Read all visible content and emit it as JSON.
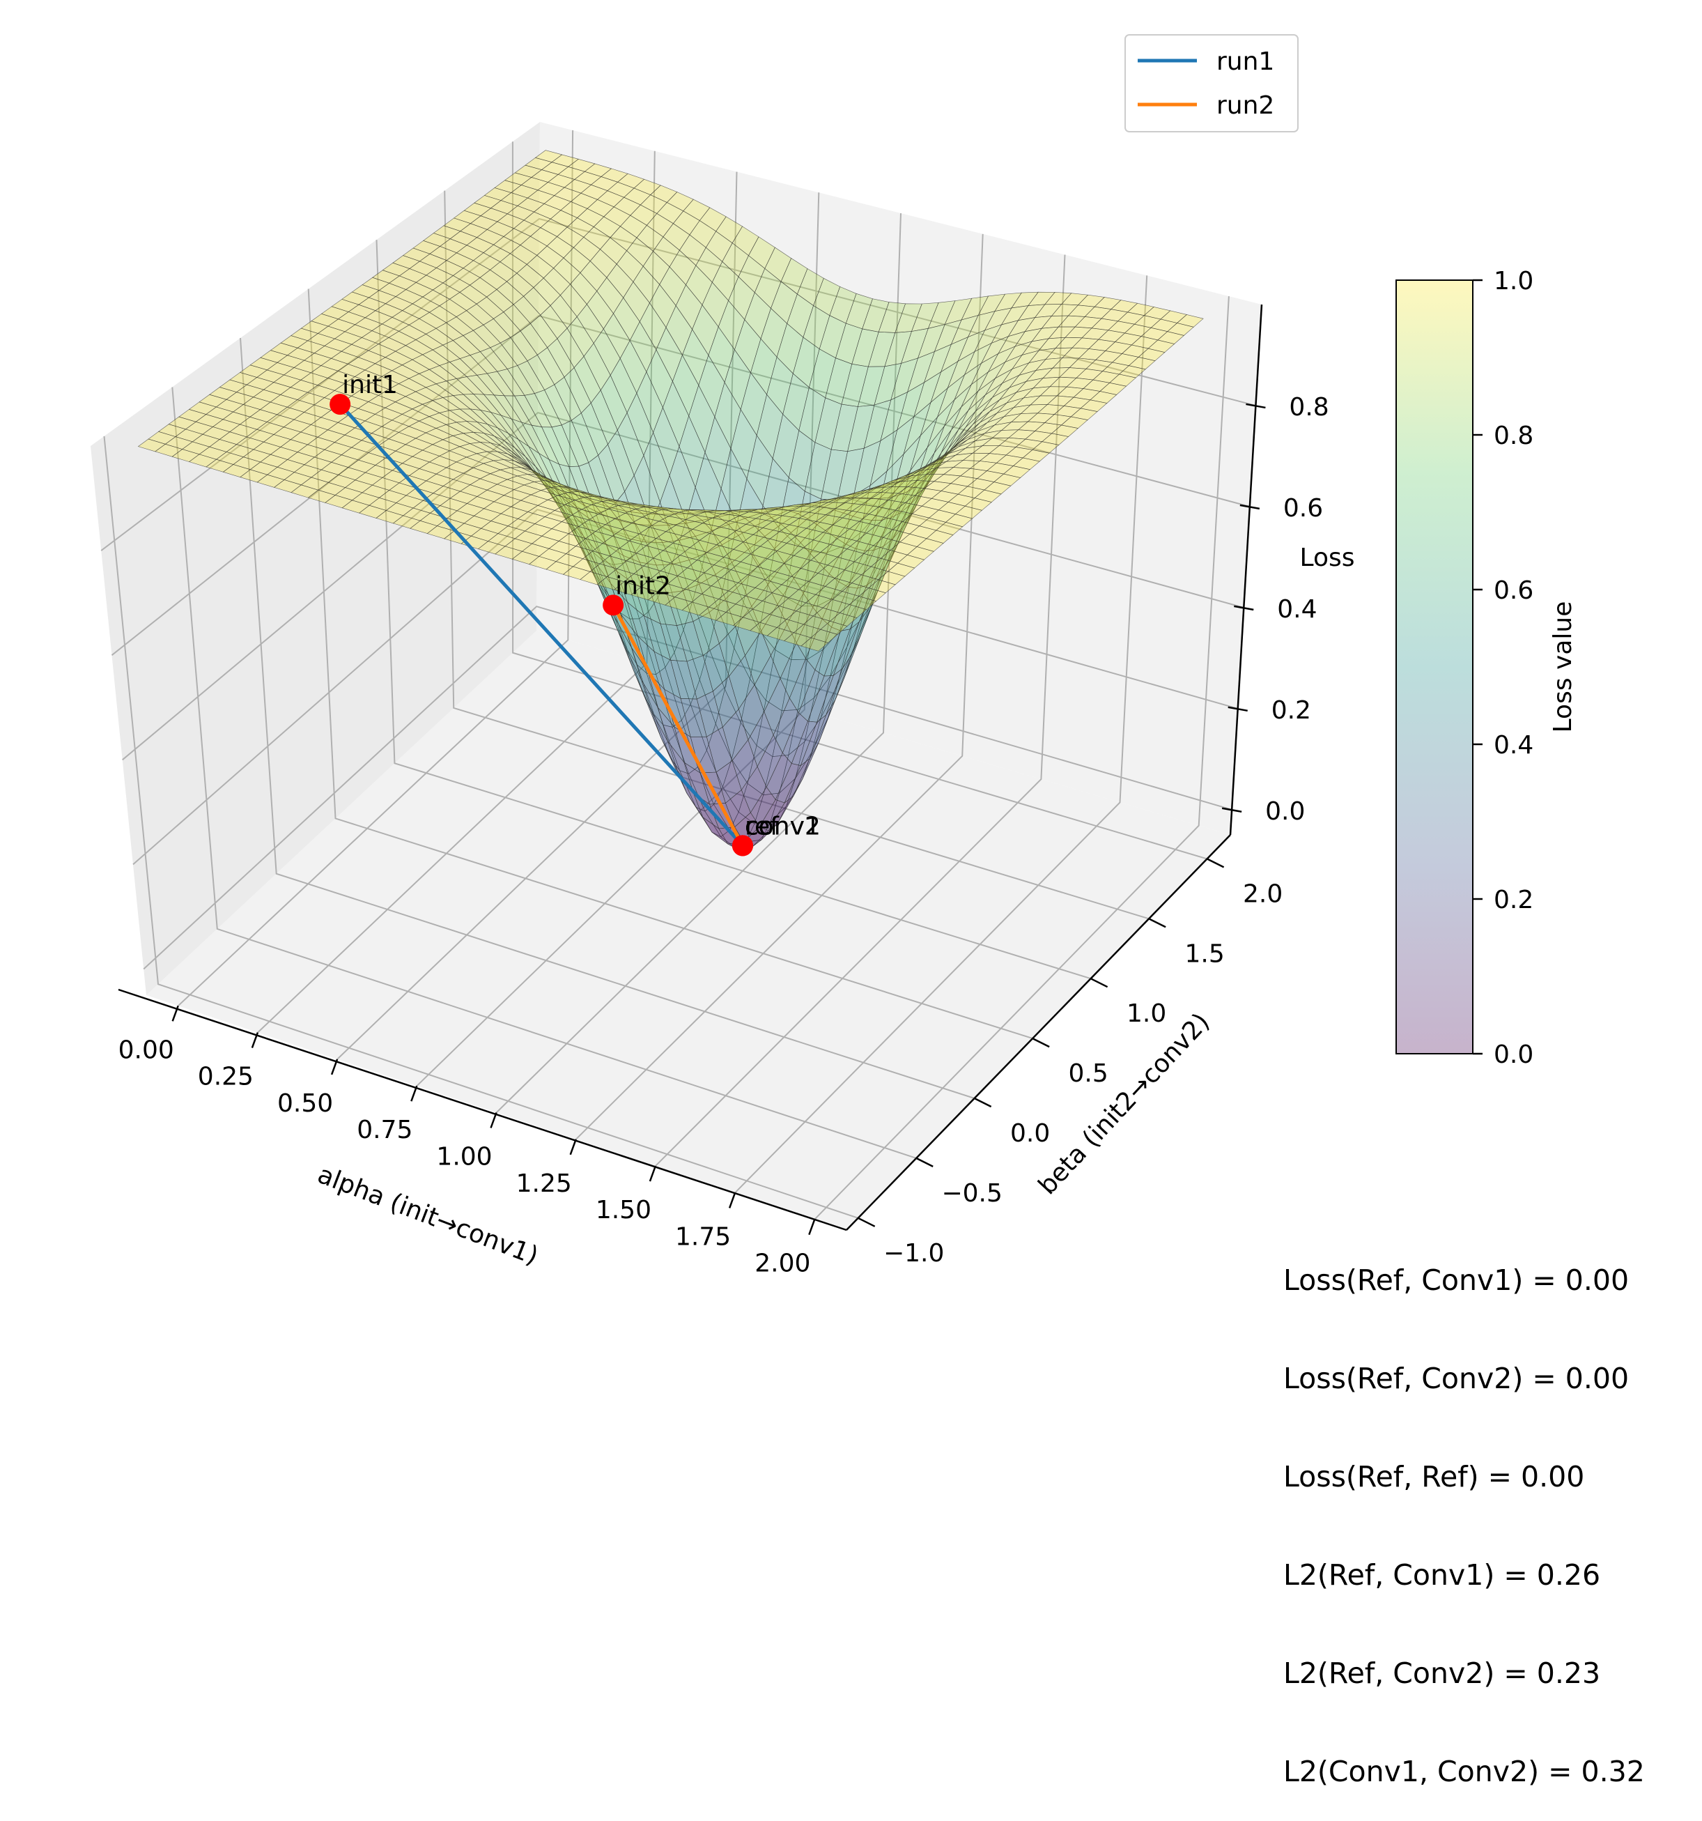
{
  "chart_data": {
    "type": "surface",
    "title": "",
    "xlabel": "alpha (init→conv1)",
    "ylabel": "beta (init2→conv2)",
    "zlabel": "Loss",
    "xlim": [
      -0.1,
      2.1
    ],
    "ylim": [
      -1.1,
      2.2
    ],
    "zlim": [
      -0.05,
      1.0
    ],
    "x_ticks": [
      "0.00",
      "0.25",
      "0.50",
      "0.75",
      "1.00",
      "1.25",
      "1.50",
      "1.75",
      "2.00"
    ],
    "y_ticks": [
      "−1.0",
      "−0.5",
      "0.0",
      "0.5",
      "1.0",
      "1.5",
      "2.0"
    ],
    "z_ticks": [
      "0.0",
      "0.2",
      "0.4",
      "0.6",
      "0.8"
    ],
    "grid": true,
    "colormap": "viridis (alpha 0.3)",
    "surface": {
      "x_range": [
        0.0,
        2.0
      ],
      "y_range": [
        -1.0,
        2.0
      ],
      "minimum": {
        "alpha": 1.0,
        "beta": 1.0,
        "loss": 0.0
      },
      "plateau_loss": 1.0
    },
    "series": [
      {
        "name": "run1",
        "color": "#1f77b4",
        "from": "init1",
        "to": "conv1"
      },
      {
        "name": "run2",
        "color": "#ff7f0e",
        "from": "init2",
        "to": "conv2"
      }
    ],
    "points": [
      {
        "label": "init1",
        "loss": 0.8
      },
      {
        "label": "init2",
        "loss": 0.4
      },
      {
        "label": "conv1",
        "loss": 0.0
      },
      {
        "label": "conv2",
        "loss": 0.0
      },
      {
        "label": "ref",
        "loss": 0.0
      }
    ],
    "legend": {
      "position": "top-right",
      "entries": [
        "run1",
        "run2"
      ]
    },
    "colorbar": {
      "label": "Loss value",
      "range": [
        0.0,
        1.0
      ],
      "ticks": [
        "0.0",
        "0.2",
        "0.4",
        "0.6",
        "0.8",
        "1.0"
      ]
    },
    "annotations": [
      "Loss(Ref, Conv1) = 0.00",
      "Loss(Ref, Conv2) = 0.00",
      "Loss(Ref, Ref) = 0.00",
      "L2(Ref, Conv1) = 0.26",
      "L2(Ref, Conv2) = 0.23",
      "L2(Conv1, Conv2) = 0.32"
    ],
    "point_color": "#ff0000"
  }
}
